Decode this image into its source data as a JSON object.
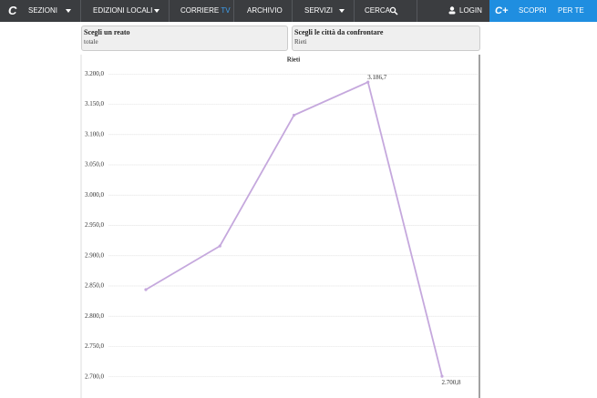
{
  "nav": {
    "items": [
      "SEZIONI",
      "EDIZIONI LOCALI"
    ],
    "tv": {
      "main": "CORRIERE",
      "accent": "TV"
    },
    "archive": "ARCHIVIO",
    "services": "SERVIZI",
    "search": "CERCA",
    "login": "LOGIN",
    "discover": "SCOPRI",
    "for_you": "PER TE"
  },
  "filters": [
    {
      "label": "Scegli un reato",
      "value": "totale"
    },
    {
      "label": "Scegli le città da confrontare",
      "value": "Rieti"
    }
  ],
  "chart_data": {
    "type": "line",
    "title": "Rieti",
    "categories": [
      null,
      null,
      null,
      null,
      null
    ],
    "series": [
      {
        "name": "Rieti",
        "color": "#c5a8dd",
        "values": [
          2844,
          2916,
          3132,
          3186.7,
          2700.8
        ],
        "value_labels": [
          null,
          null,
          null,
          "3.186,7",
          "2.700,8"
        ]
      }
    ],
    "ylim": [
      2683,
      3214
    ],
    "yticks": [
      {
        "value": 2700,
        "label": "2.700,0"
      },
      {
        "value": 2750,
        "label": "2.750,0"
      },
      {
        "value": 2800,
        "label": "2.800,0"
      },
      {
        "value": 2850,
        "label": "2.850,0"
      },
      {
        "value": 2900,
        "label": "2.900,0"
      },
      {
        "value": 2950,
        "label": "2.950,0"
      },
      {
        "value": 3000,
        "label": "3.000,0"
      },
      {
        "value": 3050,
        "label": "3.050,0"
      },
      {
        "value": 3100,
        "label": "3.100,0"
      },
      {
        "value": 3150,
        "label": "3.150,0"
      },
      {
        "value": 3200,
        "label": "3.200,0"
      }
    ],
    "grid": true
  }
}
